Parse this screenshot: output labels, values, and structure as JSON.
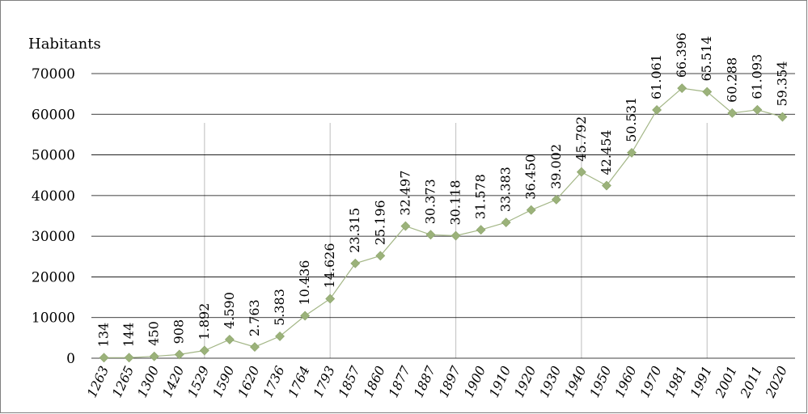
{
  "chart_data": {
    "type": "line",
    "ylabel": "Habitants",
    "ylim": [
      0,
      70000
    ],
    "yticks": [
      "0",
      "10000",
      "20000",
      "30000",
      "40000",
      "50000",
      "60000",
      "70000"
    ],
    "grid": true,
    "legend": "none",
    "series_color": "#9bb27a",
    "points": [
      {
        "x": "1263",
        "y": 134,
        "label": "134"
      },
      {
        "x": "1265",
        "y": 144,
        "label": "144"
      },
      {
        "x": "1300",
        "y": 450,
        "label": "450"
      },
      {
        "x": "1420",
        "y": 908,
        "label": "908"
      },
      {
        "x": "1529",
        "y": 1892,
        "label": "1.892"
      },
      {
        "x": "1590",
        "y": 4590,
        "label": "4.590"
      },
      {
        "x": "1620",
        "y": 2763,
        "label": "2.763"
      },
      {
        "x": "1736",
        "y": 5383,
        "label": "5.383"
      },
      {
        "x": "1764",
        "y": 10436,
        "label": "10.436"
      },
      {
        "x": "1793",
        "y": 14626,
        "label": "14.626"
      },
      {
        "x": "1857",
        "y": 23315,
        "label": "23.315"
      },
      {
        "x": "1860",
        "y": 25196,
        "label": "25.196"
      },
      {
        "x": "1877",
        "y": 32497,
        "label": "32.497"
      },
      {
        "x": "1887",
        "y": 30373,
        "label": "30.373"
      },
      {
        "x": "1897",
        "y": 30118,
        "label": "30.118"
      },
      {
        "x": "1900",
        "y": 31578,
        "label": "31.578"
      },
      {
        "x": "1910",
        "y": 33383,
        "label": "33.383"
      },
      {
        "x": "1920",
        "y": 36450,
        "label": "36.450"
      },
      {
        "x": "1930",
        "y": 39002,
        "label": "39.002"
      },
      {
        "x": "1940",
        "y": 45792,
        "label": "45.792"
      },
      {
        "x": "1950",
        "y": 42454,
        "label": "42.454"
      },
      {
        "x": "1960",
        "y": 50531,
        "label": "50.531"
      },
      {
        "x": "1970",
        "y": 61061,
        "label": "61.061"
      },
      {
        "x": "1981",
        "y": 66396,
        "label": "66.396"
      },
      {
        "x": "1991",
        "y": 65514,
        "label": "65.514"
      },
      {
        "x": "2001",
        "y": 60288,
        "label": "60.288"
      },
      {
        "x": "2011",
        "y": 61093,
        "label": "61.093"
      },
      {
        "x": "2020",
        "y": 59354,
        "label": "59.354"
      }
    ],
    "vertical_markers": [
      "1529",
      "1793",
      "1897",
      "1940",
      "1991"
    ]
  }
}
